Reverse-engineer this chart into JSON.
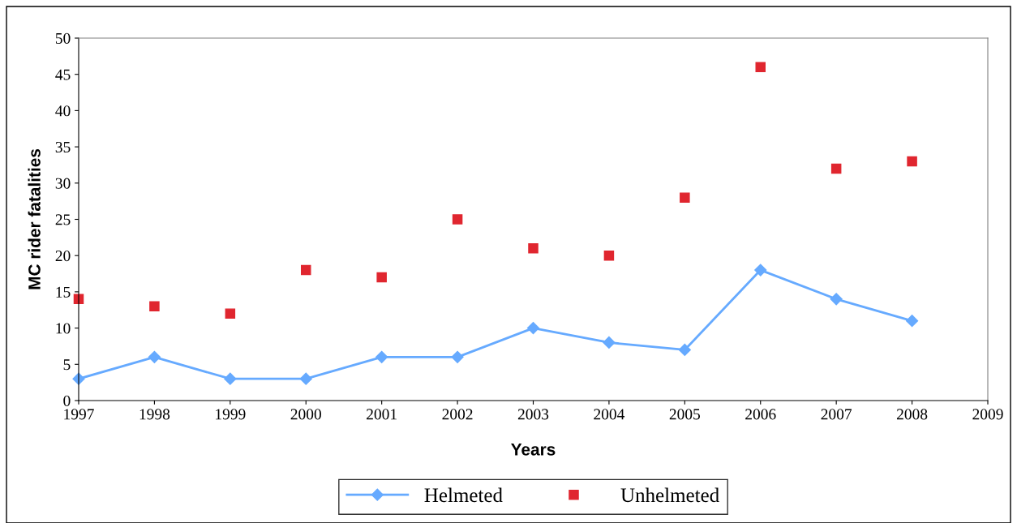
{
  "chart_data": {
    "type": "line",
    "xlabel": "Years",
    "ylabel": "MC rider fatalities",
    "x": [
      1997,
      1998,
      1999,
      2000,
      2001,
      2002,
      2003,
      2004,
      2005,
      2006,
      2007,
      2008
    ],
    "series": [
      {
        "name": "Helmeted",
        "color": "#66aaff",
        "marker": "diamond",
        "values": [
          3,
          6,
          3,
          3,
          6,
          6,
          10,
          8,
          7,
          18,
          14,
          11
        ]
      },
      {
        "name": "Unhelmeted",
        "type": "scatter",
        "color": "#e0262f",
        "marker": "square",
        "values": [
          14,
          13,
          12,
          18,
          17,
          25,
          21,
          20,
          28,
          46,
          32,
          33
        ]
      }
    ],
    "xlim": [
      1997,
      2009
    ],
    "xticks": [
      1997,
      1998,
      1999,
      2000,
      2001,
      2002,
      2003,
      2004,
      2005,
      2006,
      2007,
      2008,
      2009
    ],
    "ylim": [
      0,
      50
    ],
    "yticks": [
      0,
      5,
      10,
      15,
      20,
      25,
      30,
      35,
      40,
      45,
      50
    ],
    "grid": false,
    "legend": "bottom"
  }
}
